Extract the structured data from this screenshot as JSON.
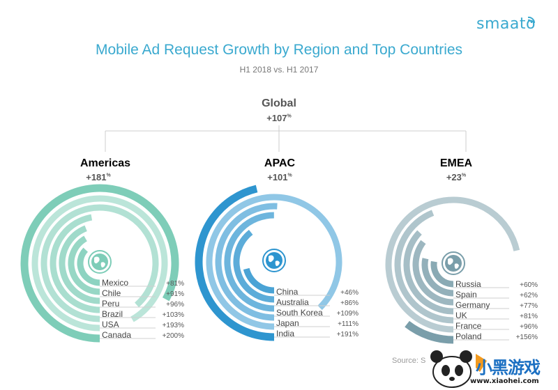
{
  "logo": {
    "text": "smaato"
  },
  "chart_data": {
    "type": "radial-bar",
    "title": "Mobile Ad Request Growth by Region and Top Countries",
    "subtitle": "H1 2018 vs. H1 2017",
    "global": {
      "name": "Global",
      "value": 107,
      "label": "+107%"
    },
    "regions": [
      {
        "name": "Americas",
        "value": 181,
        "label": "+181%",
        "color": "#7ecdb8",
        "countries": [
          {
            "name": "Mexico",
            "value": 81,
            "label": "+81%"
          },
          {
            "name": "Chile",
            "value": 91,
            "label": "+91%"
          },
          {
            "name": "Peru",
            "value": 96,
            "label": "+96%"
          },
          {
            "name": "Brazil",
            "value": 103,
            "label": "+103%"
          },
          {
            "name": "USA",
            "value": 193,
            "label": "+193%"
          },
          {
            "name": "Canada",
            "value": 200,
            "label": "+200%"
          }
        ]
      },
      {
        "name": "APAC",
        "value": 101,
        "label": "+101%",
        "color": "#2e95cf",
        "countries": [
          {
            "name": "China",
            "value": 46,
            "label": "+46%"
          },
          {
            "name": "Australia",
            "value": 86,
            "label": "+86%"
          },
          {
            "name": "South Korea",
            "value": 109,
            "label": "+109%"
          },
          {
            "name": "Japan",
            "value": 111,
            "label": "+111%"
          },
          {
            "name": "India",
            "value": 191,
            "label": "+191%"
          }
        ]
      },
      {
        "name": "EMEA",
        "value": 23,
        "label": "+23%",
        "color": "#7a9eaa",
        "countries": [
          {
            "name": "Russia",
            "value": 60,
            "label": "+60%"
          },
          {
            "name": "Spain",
            "value": 62,
            "label": "+62%"
          },
          {
            "name": "Germany",
            "value": 77,
            "label": "+77%"
          },
          {
            "name": "UK",
            "value": 81,
            "label": "+81%"
          },
          {
            "name": "France",
            "value": 96,
            "label": "+96%"
          },
          {
            "name": "Poland",
            "value": 156,
            "label": "+156%"
          }
        ]
      }
    ],
    "source": "Source: S"
  },
  "watermark": {
    "text": "小黑游戏",
    "url_text": "www.xiaohei.com"
  }
}
